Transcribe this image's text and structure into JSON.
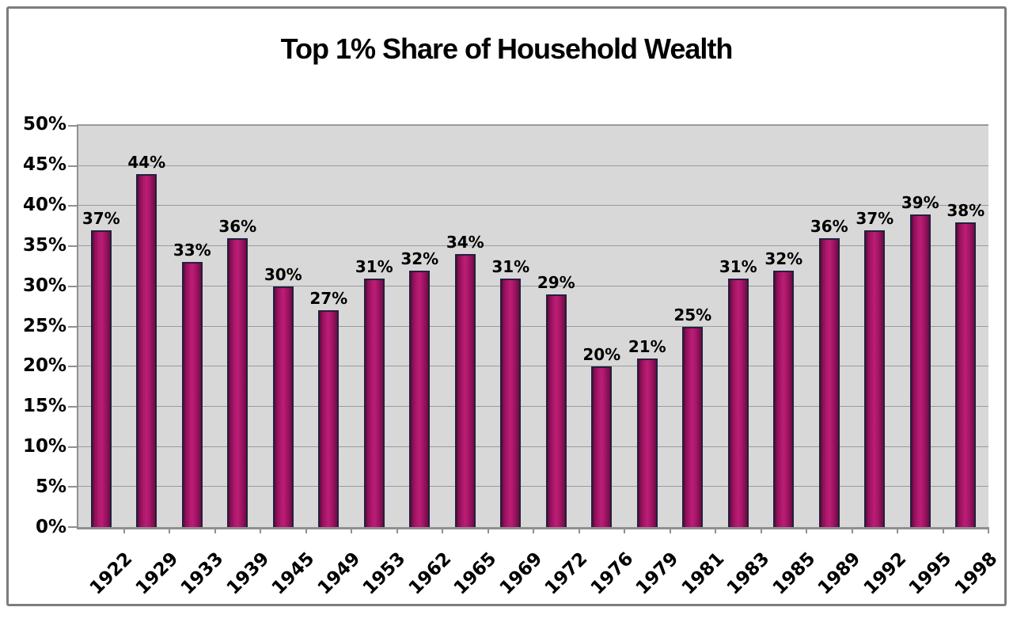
{
  "chart_data": {
    "type": "bar",
    "title": "Top 1% Share of Household Wealth",
    "categories": [
      "1922",
      "1929",
      "1933",
      "1939",
      "1945",
      "1949",
      "1953",
      "1962",
      "1965",
      "1969",
      "1972",
      "1976",
      "1979",
      "1981",
      "1983",
      "1985",
      "1989",
      "1992",
      "1995",
      "1998"
    ],
    "values": [
      37,
      44,
      33,
      36,
      30,
      27,
      31,
      32,
      34,
      31,
      29,
      20,
      21,
      25,
      31,
      32,
      36,
      37,
      39,
      38
    ],
    "value_labels": [
      "37%",
      "44%",
      "33%",
      "36%",
      "30%",
      "27%",
      "31%",
      "32%",
      "34%",
      "31%",
      "29%",
      "20%",
      "21%",
      "25%",
      "31%",
      "32%",
      "36%",
      "37%",
      "39%",
      "38%"
    ],
    "xlabel": "",
    "ylabel": "",
    "y_axis": {
      "min": 0,
      "max": 50,
      "tick_step": 5,
      "tick_labels": [
        "50%",
        "45%",
        "40%",
        "35%",
        "30%",
        "25%",
        "20%",
        "15%",
        "10%",
        "5%",
        "0%"
      ]
    },
    "grid": true,
    "legend": false,
    "x_label_rotation_deg": 45,
    "colors": {
      "bar_fill": "#a91668",
      "bar_fill_highlight": "#bc1d77",
      "bar_fill_dark": "#5f0a3c",
      "bar_border": "#241f3d",
      "plot_background": "#d8d8d8",
      "gridline": "#9b9b9b",
      "axis_line": "#8f8f8f",
      "frame_border": "#7d7d7d",
      "text": "#000000",
      "page_background": "#ffffff"
    }
  }
}
